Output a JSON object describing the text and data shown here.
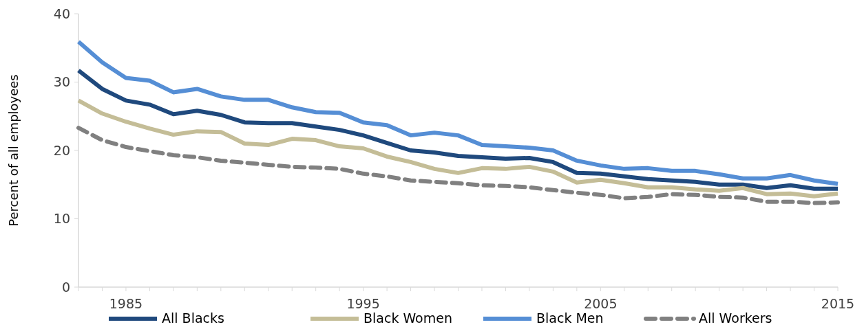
{
  "chart_data": {
    "type": "line",
    "ylabel": "Percent of all employees",
    "x": [
      1983,
      1984,
      1985,
      1986,
      1987,
      1988,
      1989,
      1990,
      1991,
      1992,
      1993,
      1994,
      1995,
      1996,
      1997,
      1998,
      1999,
      2000,
      2001,
      2002,
      2003,
      2004,
      2005,
      2006,
      2007,
      2008,
      2009,
      2010,
      2011,
      2012,
      2013,
      2014,
      2015
    ],
    "xlim": [
      1983,
      2015
    ],
    "xticks": [
      {
        "value": 1983,
        "label": null
      },
      {
        "value": 1984,
        "label": null
      },
      1985,
      {
        "value": 1986,
        "label": null
      },
      {
        "value": 1987,
        "label": null
      },
      {
        "value": 1988,
        "label": null
      },
      {
        "value": 1989,
        "label": null
      },
      {
        "value": 1990,
        "label": null
      },
      {
        "value": 1991,
        "label": null
      },
      {
        "value": 1992,
        "label": null
      },
      {
        "value": 1993,
        "label": null
      },
      {
        "value": 1994,
        "label": null
      },
      1995,
      {
        "value": 1996,
        "label": null
      },
      {
        "value": 1997,
        "label": null
      },
      {
        "value": 1998,
        "label": null
      },
      {
        "value": 1999,
        "label": null
      },
      {
        "value": 2000,
        "label": null
      },
      {
        "value": 2001,
        "label": null
      },
      {
        "value": 2002,
        "label": null
      },
      {
        "value": 2003,
        "label": null
      },
      {
        "value": 2004,
        "label": null
      },
      2005,
      {
        "value": 2006,
        "label": null
      },
      {
        "value": 2007,
        "label": null
      },
      {
        "value": 2008,
        "label": null
      },
      {
        "value": 2009,
        "label": null
      },
      {
        "value": 2010,
        "label": null
      },
      {
        "value": 2011,
        "label": null
      },
      {
        "value": 2012,
        "label": null
      },
      {
        "value": 2013,
        "label": null
      },
      {
        "value": 2014,
        "label": null
      },
      2015
    ],
    "ylim": [
      0,
      40
    ],
    "yticks": [
      0,
      10,
      20,
      30,
      40
    ],
    "grid": false,
    "legend": "bottom",
    "marker": "none",
    "series": [
      {
        "name": "All Blacks",
        "color": "#1f497d",
        "line_style": "solid",
        "values": [
          31.7,
          29.0,
          27.3,
          26.7,
          25.3,
          25.8,
          25.2,
          24.1,
          24.0,
          24.0,
          23.5,
          23.0,
          22.2,
          21.1,
          20.0,
          19.7,
          19.2,
          19.0,
          18.8,
          18.9,
          18.3,
          16.7,
          16.6,
          16.2,
          15.8,
          15.6,
          15.4,
          15.0,
          15.0,
          14.5,
          14.9,
          14.4,
          14.4
        ]
      },
      {
        "name": "Black Women",
        "color": "#c4bd97",
        "line_style": "solid",
        "values": [
          27.3,
          25.4,
          24.2,
          23.2,
          22.3,
          22.8,
          22.7,
          21.0,
          20.8,
          21.7,
          21.5,
          20.6,
          20.3,
          19.1,
          18.3,
          17.3,
          16.7,
          17.4,
          17.3,
          17.6,
          16.9,
          15.3,
          15.7,
          15.2,
          14.6,
          14.6,
          14.3,
          14.1,
          14.5,
          13.6,
          13.7,
          13.3,
          13.7
        ]
      },
      {
        "name": "Black Men",
        "color": "#558ed5",
        "line_style": "solid",
        "values": [
          35.9,
          32.9,
          30.6,
          30.2,
          28.5,
          29.0,
          27.9,
          27.4,
          27.4,
          26.3,
          25.6,
          25.5,
          24.1,
          23.7,
          22.2,
          22.6,
          22.2,
          20.8,
          20.6,
          20.4,
          20.0,
          18.5,
          17.8,
          17.3,
          17.4,
          17.0,
          17.0,
          16.5,
          15.9,
          15.9,
          16.4,
          15.6,
          15.1
        ]
      },
      {
        "name": "All Workers",
        "color": "#808080",
        "line_style": "dashed",
        "values": [
          23.3,
          21.5,
          20.5,
          19.9,
          19.3,
          19.0,
          18.5,
          18.2,
          17.9,
          17.6,
          17.5,
          17.3,
          16.6,
          16.2,
          15.6,
          15.4,
          15.2,
          14.9,
          14.8,
          14.6,
          14.2,
          13.8,
          13.5,
          13.0,
          13.2,
          13.6,
          13.5,
          13.2,
          13.1,
          12.5,
          12.5,
          12.3,
          12.4
        ]
      }
    ]
  }
}
